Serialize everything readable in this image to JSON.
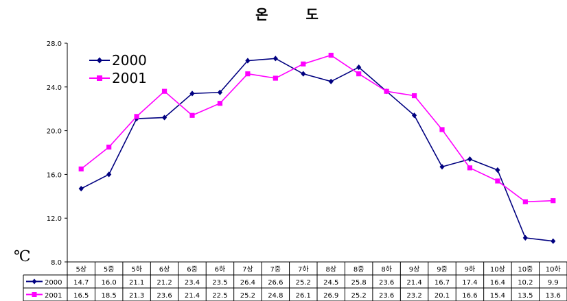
{
  "chart_data": {
    "type": "line",
    "title": "온 도",
    "ylabel": "℃",
    "ylim": [
      8.0,
      28.0
    ],
    "yticks": [
      "8.0",
      "12.0",
      "16.0",
      "20.0",
      "24.0",
      "28.0"
    ],
    "ytick_values": [
      8,
      12,
      16,
      20,
      24,
      28
    ],
    "categories": [
      "5상",
      "5중",
      "5하",
      "6상",
      "6중",
      "6하",
      "7상",
      "7중",
      "7하",
      "8상",
      "8중",
      "8하",
      "9상",
      "9중",
      "9하",
      "10상",
      "10중",
      "10하"
    ],
    "legend_position": "top-left",
    "grid": false,
    "series": [
      {
        "name": "2000",
        "color": "#000080",
        "marker": "diamond",
        "values": [
          14.7,
          16.0,
          21.1,
          21.2,
          23.4,
          23.5,
          26.4,
          26.6,
          25.2,
          24.5,
          25.8,
          23.6,
          21.4,
          16.7,
          17.4,
          16.4,
          10.2,
          9.9
        ],
        "labels": [
          "14.7",
          "16.0",
          "21.1",
          "21.2",
          "23.4",
          "23.5",
          "26.4",
          "26.6",
          "25.2",
          "24.5",
          "25.8",
          "23.6",
          "21.4",
          "16.7",
          "17.4",
          "16.4",
          "10.2",
          "9.9"
        ]
      },
      {
        "name": "2001",
        "color": "#ff00ff",
        "marker": "square",
        "values": [
          16.5,
          18.5,
          21.3,
          23.6,
          21.4,
          22.5,
          25.2,
          24.8,
          26.1,
          26.9,
          25.2,
          23.6,
          23.2,
          20.1,
          16.6,
          15.4,
          13.5,
          13.6
        ],
        "labels": [
          "16.5",
          "18.5",
          "21.3",
          "23.6",
          "21.4",
          "22.5",
          "25.2",
          "24.8",
          "26.1",
          "26.9",
          "25.2",
          "23.6",
          "23.2",
          "20.1",
          "16.6",
          "15.4",
          "13.5",
          "13.6"
        ]
      }
    ]
  }
}
